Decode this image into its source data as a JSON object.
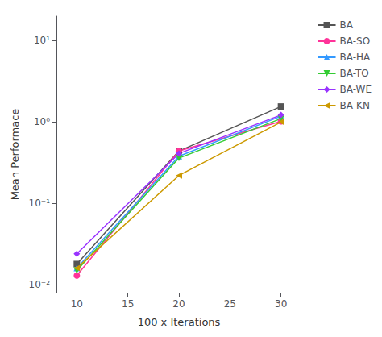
{
  "chart_data": {
    "type": "line",
    "x": [
      10,
      20,
      30
    ],
    "series": [
      {
        "name": "BA",
        "color": "#555555",
        "marker": "square",
        "values": [
          0.018,
          0.44,
          1.55
        ]
      },
      {
        "name": "BA-SO",
        "color": "#ff3399",
        "marker": "circle",
        "values": [
          0.013,
          0.44,
          1.02
        ]
      },
      {
        "name": "BA-HA",
        "color": "#3399ff",
        "marker": "triangle_up",
        "values": [
          0.016,
          0.38,
          1.18
        ]
      },
      {
        "name": "BA-TO",
        "color": "#33cc33",
        "marker": "triangle_down",
        "values": [
          0.015,
          0.36,
          1.1
        ]
      },
      {
        "name": "BA-WE",
        "color": "#9933ff",
        "marker": "diamond",
        "values": [
          0.024,
          0.41,
          1.22
        ]
      },
      {
        "name": "BA-KN",
        "color": "#cc9900",
        "marker": "triangle_left",
        "values": [
          0.016,
          0.22,
          1.0
        ]
      }
    ],
    "xlabel": "100 x Iterations",
    "ylabel": "Mean Performace",
    "xlim": [
      8,
      32
    ],
    "ylim": [
      0.008,
      20
    ],
    "xticks": [
      10,
      15,
      20,
      25,
      30
    ],
    "yticks": [
      {
        "value": 0.01,
        "label": "10⁻²"
      },
      {
        "value": 0.1,
        "label": "10⁻¹"
      },
      {
        "value": 1,
        "label": "10⁰"
      },
      {
        "value": 10,
        "label": "10¹"
      }
    ],
    "log": "y",
    "grid": false,
    "legend": "upper right"
  }
}
